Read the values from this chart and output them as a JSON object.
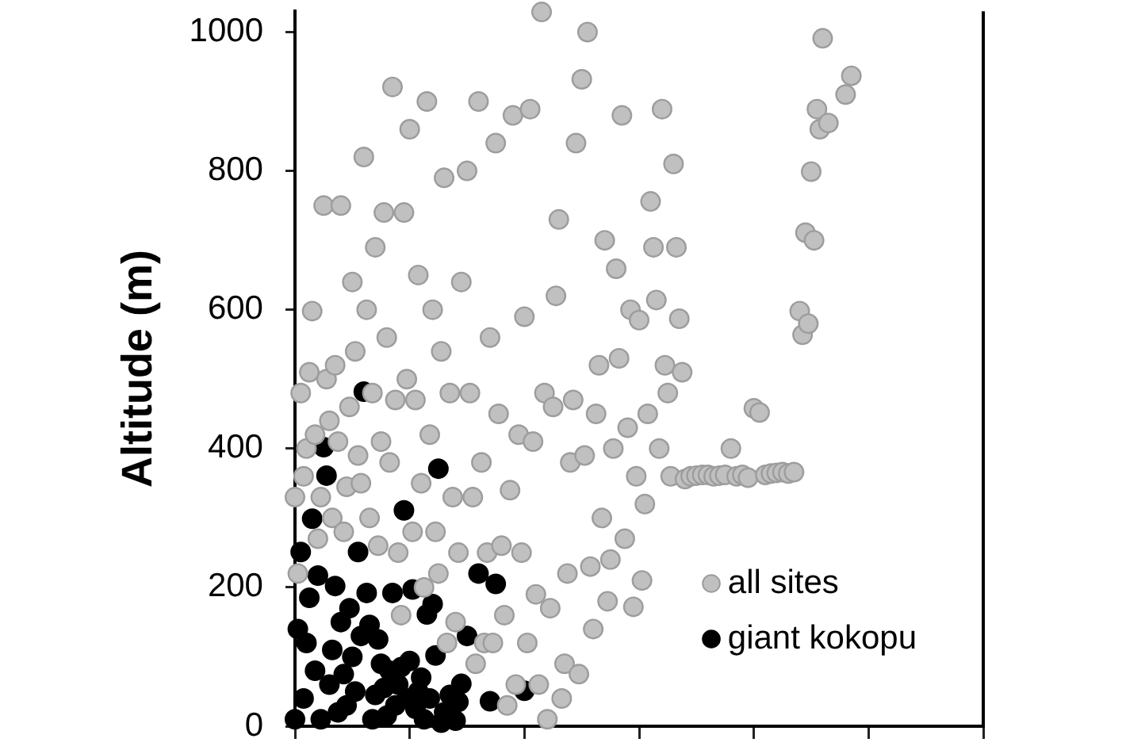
{
  "chart_data": {
    "type": "scatter",
    "ylabel": "Altitude (m)",
    "categories": [
      null,
      null,
      null,
      null,
      null,
      null,
      null,
      null,
      null,
      null,
      null,
      null,
      null,
      null,
      null,
      null,
      null,
      null,
      null,
      null,
      null,
      null,
      null,
      null,
      null,
      null,
      null,
      null,
      null,
      null,
      null,
      null,
      null,
      null,
      null,
      null,
      null,
      null,
      null,
      null,
      null,
      null,
      null,
      null,
      null,
      null,
      null,
      null,
      null,
      null,
      null,
      null,
      null,
      null,
      null,
      null,
      null,
      null,
      null,
      null,
      null,
      null,
      null,
      null,
      null,
      null,
      null,
      null,
      null,
      null,
      null,
      null,
      null,
      null,
      null,
      null,
      null,
      null,
      null,
      null,
      null,
      null,
      null,
      null,
      null,
      null,
      null,
      null,
      null,
      null,
      null,
      null,
      null,
      null,
      null,
      null,
      null,
      null,
      null,
      null,
      null,
      null,
      null,
      null,
      null,
      null,
      null,
      null,
      null,
      null,
      null,
      null,
      null,
      null,
      null,
      null,
      null,
      null,
      null,
      null,
      null,
      null,
      null,
      null,
      null,
      null,
      null,
      null,
      null,
      null,
      null,
      null,
      null,
      null,
      null,
      null,
      null,
      null,
      null,
      null,
      null,
      null,
      null,
      null,
      null,
      null,
      null,
      null,
      null,
      null,
      null,
      null,
      null,
      null,
      null,
      null,
      null,
      null,
      null,
      null,
      null,
      null,
      null,
      null,
      null,
      null,
      null,
      null,
      null,
      null,
      null,
      null,
      null,
      null,
      null,
      null,
      null,
      null,
      null,
      null,
      null,
      null,
      null,
      null,
      null,
      null,
      null,
      null,
      null,
      null,
      null,
      null,
      null,
      null,
      null,
      null,
      null,
      null,
      null,
      null,
      null,
      null,
      null,
      null,
      null,
      null,
      null,
      null,
      null,
      null,
      null,
      null,
      null,
      null,
      null,
      null,
      null,
      null,
      null,
      null,
      null,
      null,
      null,
      null,
      null,
      null,
      null,
      null,
      null,
      null,
      null,
      null,
      null,
      null,
      null,
      null,
      null,
      null,
      null,
      null,
      null
    ],
    "ylim": [
      0,
      1030
    ],
    "yticks": [
      0,
      200,
      400,
      600,
      800,
      1000
    ],
    "tick_labels": "y",
    "grid": false,
    "legend": "bottom right",
    "marker": "circle",
    "series": [
      {
        "name": "all sites",
        "color": "#c0c0c0",
        "values": [
          330,
          220,
          480,
          360,
          400,
          510,
          598,
          420,
          270,
          330,
          750,
          500,
          440,
          300,
          520,
          410,
          750,
          280,
          345,
          460,
          640,
          540,
          390,
          350,
          820,
          600,
          300,
          480,
          690,
          260,
          410,
          740,
          560,
          380,
          921,
          470,
          250,
          160,
          740,
          500,
          860,
          280,
          470,
          650,
          350,
          200,
          900,
          420,
          600,
          280,
          220,
          540,
          790,
          120,
          480,
          330,
          150,
          250,
          640,
          null,
          800,
          480,
          330,
          90,
          900,
          380,
          120,
          250,
          560,
          120,
          840,
          450,
          260,
          160,
          30,
          340,
          880,
          60,
          420,
          250,
          590,
          120,
          889,
          410,
          190,
          60,
          1029,
          480,
          10,
          170,
          460,
          620,
          730,
          40,
          90,
          220,
          380,
          470,
          840,
          75,
          932,
          390,
          1000,
          230,
          140,
          450,
          520,
          300,
          700,
          180,
          240,
          400,
          659,
          530,
          880,
          270,
          430,
          600,
          172,
          360,
          585,
          210,
          320,
          450,
          756,
          690,
          614,
          400,
          889,
          520,
          480,
          360,
          810,
          690,
          587,
          510,
          356,
          null,
          360,
          null,
          361,
          null,
          362,
          null,
          362,
          null,
          360,
          null,
          361,
          null,
          362,
          null,
          400,
          null,
          360,
          null,
          362,
          null,
          358,
          null,
          458,
          null,
          452,
          null,
          362,
          null,
          364,
          null,
          365,
          null,
          366,
          null,
          364,
          null,
          366,
          null,
          598,
          564,
          711,
          580,
          799,
          700,
          889,
          860,
          991,
          null,
          869,
          null,
          null,
          null,
          null,
          null,
          910,
          null,
          937,
          null,
          null,
          null,
          null,
          null,
          null,
          null,
          null,
          null,
          null,
          null,
          null,
          null,
          null,
          null,
          null,
          null,
          null,
          null,
          null,
          null,
          null,
          null,
          null,
          null,
          null,
          null,
          null,
          null,
          null,
          null,
          null,
          null,
          null,
          null,
          null,
          null,
          null,
          null,
          null,
          null,
          null,
          null,
          null,
          null,
          null
        ]
      },
      {
        "name": "giant kokopu",
        "color": "#000000",
        "values": [
          10,
          140,
          251,
          40,
          120,
          185,
          299,
          80,
          217,
          10,
          402,
          361,
          60,
          110,
          202,
          20,
          150,
          75,
          30,
          170,
          100,
          50,
          251,
          130,
          482,
          192,
          146,
          10,
          45,
          125,
          90,
          55,
          15,
          80,
          192,
          30,
          60,
          85,
          311,
          40,
          94,
          197,
          25,
          50,
          70,
          10,
          161,
          40,
          176,
          102,
          371,
          5,
          20,
          null,
          45,
          null,
          8,
          35,
          61,
          null,
          130,
          null,
          null,
          null,
          220,
          null,
          null,
          null,
          36,
          null,
          205,
          null,
          null,
          null,
          null,
          null,
          null,
          null,
          null,
          null,
          51,
          null,
          null,
          null,
          null,
          null,
          null,
          null,
          null,
          null,
          null,
          null,
          null,
          null,
          null,
          null,
          null,
          null,
          null,
          null,
          null,
          null,
          null,
          null,
          null,
          null,
          null,
          null,
          null,
          null,
          null,
          null,
          null,
          null,
          null,
          null,
          null,
          null,
          null,
          null,
          null,
          null,
          null,
          null,
          null,
          null,
          null,
          null,
          null,
          null,
          null,
          null,
          null,
          null,
          null,
          null,
          null,
          null,
          null,
          null,
          null,
          null,
          null,
          null,
          null,
          null,
          null,
          null,
          null,
          null,
          null,
          null,
          null,
          null,
          null,
          null,
          null,
          null,
          null,
          null,
          null,
          null,
          null,
          null,
          null,
          null,
          null,
          null,
          null,
          null,
          null,
          null,
          null,
          null,
          null,
          null,
          null,
          null,
          null,
          null,
          null,
          null,
          null,
          null,
          null,
          null,
          null,
          null,
          null,
          null,
          null,
          null,
          null,
          null,
          null,
          null,
          null,
          null,
          null,
          null,
          null,
          null,
          null,
          null,
          null,
          null,
          null,
          null,
          null,
          null,
          null,
          null,
          null,
          null,
          null,
          null,
          null,
          null,
          null,
          null,
          null,
          null,
          null,
          null,
          null,
          null,
          null,
          null,
          null,
          null,
          null,
          null,
          null,
          null,
          null,
          null,
          null,
          null,
          null,
          null,
          null
        ]
      }
    ]
  }
}
